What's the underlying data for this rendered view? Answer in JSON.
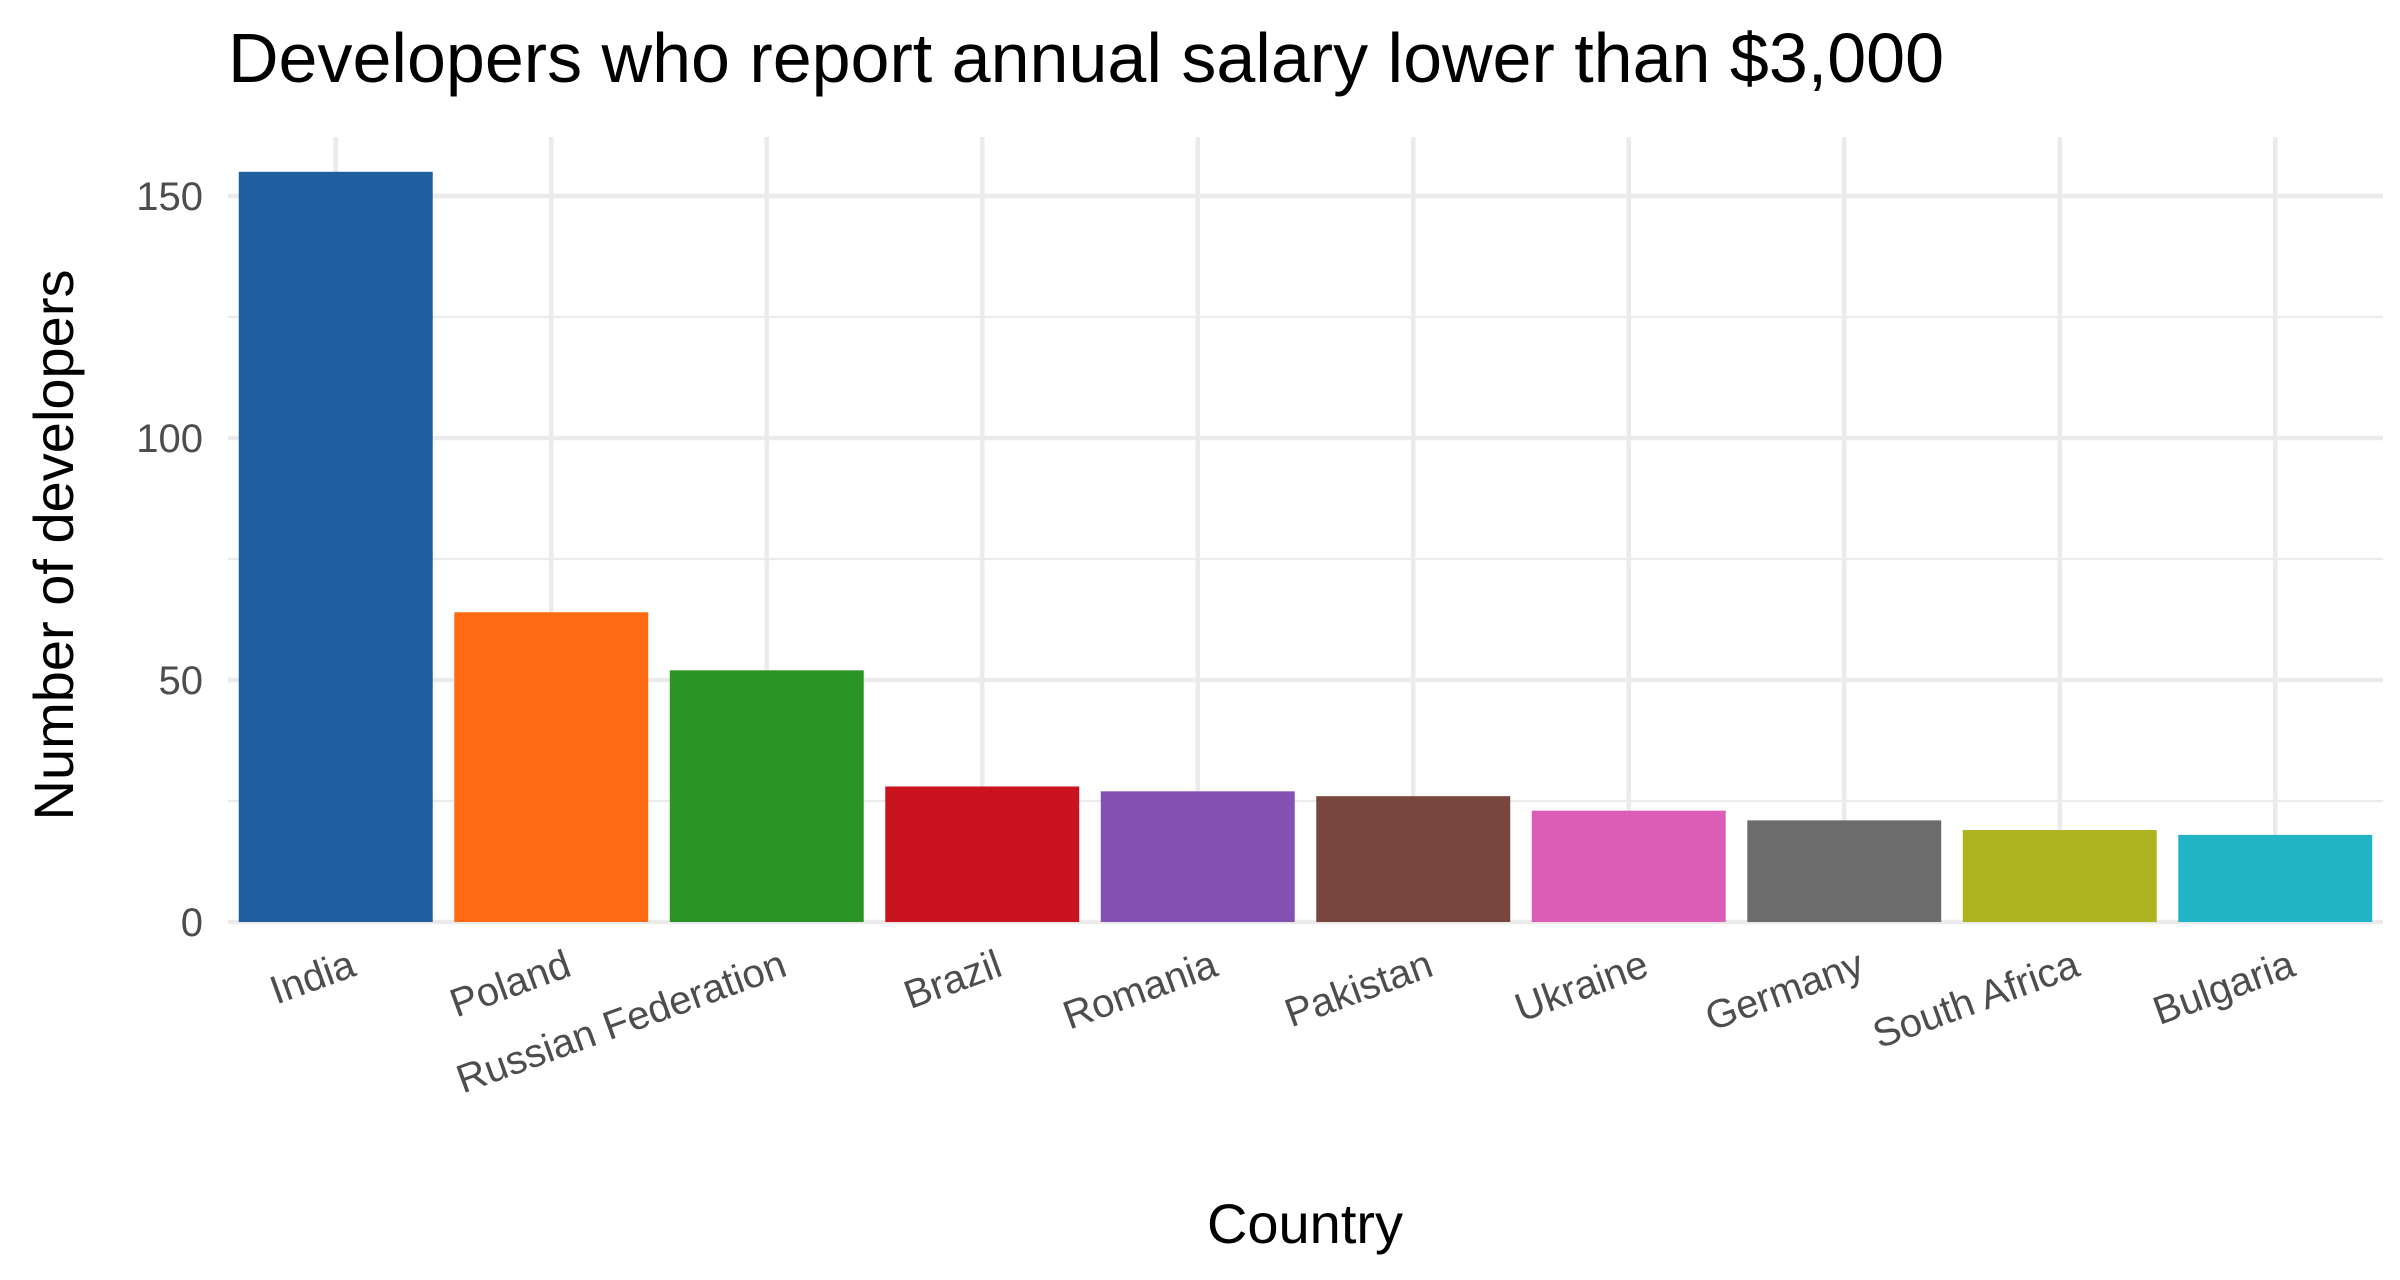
{
  "chart_data": {
    "type": "bar",
    "title": "Developers who report annual salary lower than $3,000",
    "xlabel": "Country",
    "ylabel": "Number of developers",
    "categories": [
      "India",
      "Poland",
      "Russian Federation",
      "Brazil",
      "Romania",
      "Pakistan",
      "Ukraine",
      "Germany",
      "South Africa",
      "Bulgaria"
    ],
    "values": [
      155,
      64,
      52,
      28,
      27,
      26,
      23,
      21,
      19,
      18
    ],
    "colors": [
      "#1f5fa0",
      "#ff6a12",
      "#2a9425",
      "#c9131f",
      "#8351b1",
      "#78463c",
      "#db5db6",
      "#6c6c6c",
      "#aeb320",
      "#21b4c6"
    ],
    "ylim": [
      0,
      160
    ],
    "yticks": [
      0,
      50,
      100,
      150
    ],
    "grid": true,
    "legend": "none"
  }
}
